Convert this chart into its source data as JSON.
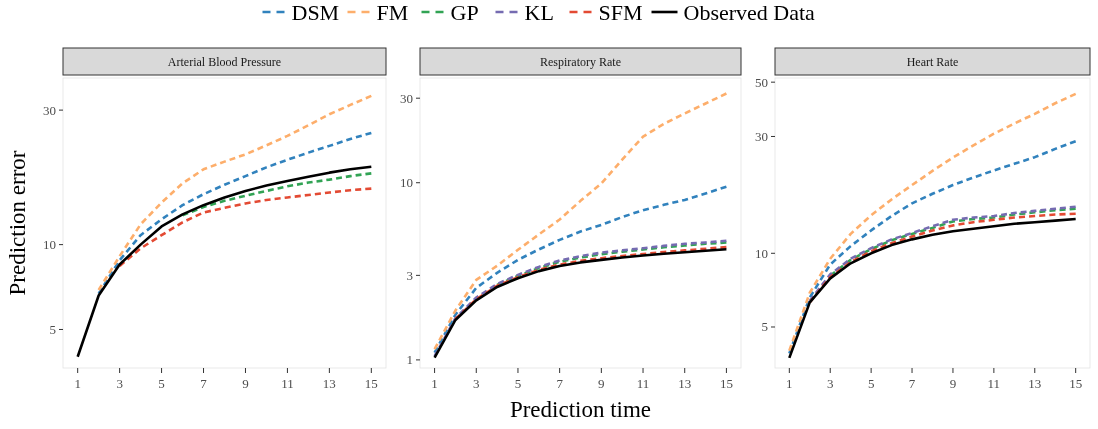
{
  "chart_data": [
    {
      "type": "line",
      "title": "Arterial Blood Pressure",
      "ylabel": "Prediction error",
      "x": [
        1,
        2,
        3,
        4,
        5,
        6,
        7,
        8,
        9,
        10,
        11,
        12,
        13,
        14,
        15
      ],
      "xlim": [
        0.3,
        15.7
      ],
      "xticks": [
        1,
        3,
        5,
        7,
        9,
        11,
        13,
        15
      ],
      "ylim": [
        3.65,
        39
      ],
      "yticks": [
        5,
        10,
        30
      ],
      "log": "y",
      "legend": "top",
      "series": [
        {
          "name": "DSM",
          "color": "#3182bd",
          "line_style": "dashed",
          "values": [
            null,
            6.7,
            8.8,
            10.8,
            12.3,
            13.8,
            15.1,
            16.3,
            17.5,
            18.8,
            20.0,
            21.2,
            22.4,
            23.7,
            24.9
          ]
        },
        {
          "name": "FM",
          "color": "#fdae6b",
          "line_style": "dashed",
          "values": [
            null,
            6.9,
            9.1,
            11.8,
            14.1,
            16.5,
            18.5,
            19.7,
            20.9,
            22.5,
            24.3,
            26.5,
            29.0,
            31.3,
            33.7
          ]
        },
        {
          "name": "GP",
          "color": "#31a354",
          "line_style": "dashed",
          "values": [
            null,
            null,
            null,
            null,
            null,
            12.7,
            13.6,
            14.3,
            14.9,
            15.5,
            16.1,
            16.6,
            17.0,
            17.5,
            17.9
          ]
        },
        {
          "name": "KL",
          "color": "#756bb1",
          "line_style": "dashed",
          "values": [
            null,
            null,
            null,
            null,
            null,
            null,
            null,
            null,
            null,
            null,
            null,
            null,
            null,
            null,
            null
          ]
        },
        {
          "name": "SFM",
          "color": "#e34a33",
          "line_style": "dashed",
          "values": [
            null,
            null,
            8.4,
            9.7,
            10.8,
            12.0,
            13.0,
            13.5,
            14.0,
            14.4,
            14.7,
            15.0,
            15.3,
            15.6,
            15.8
          ]
        },
        {
          "name": "Observed Data",
          "color": "#000000",
          "line_style": "solid",
          "values": [
            4.0,
            6.6,
            8.5,
            10.0,
            11.6,
            12.8,
            13.8,
            14.7,
            15.5,
            16.2,
            16.8,
            17.4,
            18.0,
            18.5,
            18.9
          ]
        }
      ]
    },
    {
      "type": "line",
      "title": "Respiratory Rate",
      "xlabel": "Prediction time",
      "x": [
        1,
        2,
        3,
        4,
        5,
        6,
        7,
        8,
        9,
        10,
        11,
        12,
        13,
        14,
        15
      ],
      "xlim": [
        0.3,
        15.7
      ],
      "xticks": [
        1,
        3,
        5,
        7,
        9,
        11,
        13,
        15
      ],
      "ylim": [
        0.9,
        39
      ],
      "yticks": [
        1,
        3,
        10,
        30
      ],
      "log": "y",
      "series": [
        {
          "color": "#3182bd",
          "line_style": "dashed",
          "values": [
            1.1,
            1.8,
            2.55,
            3.1,
            3.67,
            4.2,
            4.76,
            5.3,
            5.78,
            6.4,
            7.0,
            7.5,
            8.0,
            8.7,
            9.5
          ]
        },
        {
          "color": "#fdae6b",
          "line_style": "dashed",
          "values": [
            1.15,
            1.9,
            2.83,
            3.4,
            4.18,
            5.1,
            6.2,
            7.9,
            9.9,
            13.5,
            18.2,
            21.5,
            24.6,
            28.0,
            31.9
          ]
        },
        {
          "color": "#31a354",
          "line_style": "dashed",
          "values": [
            null,
            null,
            null,
            2.65,
            2.98,
            3.3,
            3.58,
            3.78,
            3.95,
            4.08,
            4.2,
            4.32,
            4.42,
            4.52,
            4.6
          ]
        },
        {
          "color": "#756bb1",
          "line_style": "dashed",
          "values": [
            1.05,
            1.72,
            2.25,
            2.68,
            3.02,
            3.35,
            3.64,
            3.85,
            4.03,
            4.15,
            4.27,
            4.4,
            4.52,
            4.6,
            4.7
          ]
        },
        {
          "color": "#e34a33",
          "line_style": "dashed",
          "values": [
            null,
            1.7,
            2.2,
            2.62,
            2.93,
            3.22,
            3.45,
            3.62,
            3.75,
            3.86,
            3.96,
            4.06,
            4.15,
            4.24,
            4.33
          ]
        },
        {
          "color": "#000000",
          "line_style": "solid",
          "values": [
            1.03,
            1.68,
            2.17,
            2.58,
            2.89,
            3.17,
            3.39,
            3.55,
            3.67,
            3.78,
            3.88,
            3.97,
            4.05,
            4.13,
            4.21
          ]
        }
      ]
    },
    {
      "type": "line",
      "title": "Heart Rate",
      "x": [
        1,
        2,
        3,
        4,
        5,
        6,
        7,
        8,
        9,
        10,
        11,
        12,
        13,
        14,
        15
      ],
      "xlim": [
        0.3,
        15.7
      ],
      "xticks": [
        1,
        3,
        5,
        7,
        9,
        11,
        13,
        15
      ],
      "ylim": [
        3.4,
        52
      ],
      "yticks": [
        5,
        10,
        30,
        50
      ],
      "log": "y",
      "series": [
        {
          "color": "#3182bd",
          "line_style": "dashed",
          "values": [
            3.9,
            6.6,
            9.0,
            10.7,
            12.4,
            14.2,
            16.0,
            17.5,
            19.0,
            20.4,
            21.8,
            23.2,
            24.7,
            26.7,
            28.7
          ]
        },
        {
          "color": "#fdae6b",
          "line_style": "dashed",
          "values": [
            4.0,
            6.9,
            9.5,
            12.0,
            14.3,
            16.6,
            19.0,
            21.7,
            24.6,
            27.6,
            30.8,
            33.9,
            37.1,
            41.0,
            44.8
          ]
        },
        {
          "color": "#31a354",
          "line_style": "dashed",
          "values": [
            null,
            null,
            8.1,
            9.4,
            10.4,
            11.3,
            12.0,
            12.7,
            13.5,
            13.8,
            14.0,
            14.4,
            14.7,
            15.0,
            15.2
          ]
        },
        {
          "color": "#756bb1",
          "line_style": "dashed",
          "values": [
            null,
            6.4,
            8.2,
            9.5,
            10.5,
            11.4,
            12.1,
            12.9,
            13.7,
            14.0,
            14.2,
            14.6,
            14.9,
            15.2,
            15.5
          ]
        },
        {
          "color": "#e34a33",
          "line_style": "dashed",
          "values": [
            null,
            6.3,
            8.0,
            9.2,
            10.2,
            11.0,
            11.7,
            12.4,
            13.0,
            13.4,
            13.7,
            14.0,
            14.2,
            14.4,
            14.5
          ]
        },
        {
          "color": "#000000",
          "line_style": "solid",
          "values": [
            3.74,
            6.3,
            7.9,
            9.1,
            10.0,
            10.8,
            11.4,
            11.9,
            12.3,
            12.6,
            12.9,
            13.2,
            13.4,
            13.6,
            13.8
          ]
        }
      ]
    }
  ]
}
